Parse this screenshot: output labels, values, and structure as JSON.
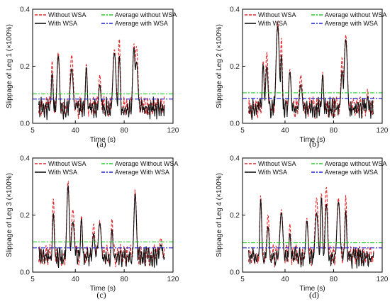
{
  "chart_data": [
    {
      "type": "line",
      "caption": "(a)",
      "ylabel": "Slippage of Leg 1 (×100%)",
      "xlabel": "Time (s)",
      "xlim": [
        5,
        120
      ],
      "ylim": [
        0,
        0.4
      ],
      "xticks": [
        "5",
        "40",
        "80",
        "120"
      ],
      "yticks": [
        "0.0",
        "0.2",
        "0.4"
      ],
      "legend": [
        "Without WSA",
        "With WSA",
        "Average without WSA",
        "Average with WSA"
      ],
      "avg_without": 0.103,
      "avg_with": 0.085,
      "peaks": [
        [
          21,
          0.22
        ],
        [
          26,
          0.25
        ],
        [
          37,
          0.24
        ],
        [
          49,
          0.21
        ],
        [
          60,
          0.17
        ],
        [
          72,
          0.26
        ],
        [
          76,
          0.3
        ],
        [
          88,
          0.28
        ],
        [
          90,
          0.27
        ]
      ],
      "end_x": 113
    },
    {
      "type": "line",
      "caption": "(b)",
      "ylabel": "Slippage of Leg 2 (×100%)",
      "xlabel": "Time (s)",
      "xlim": [
        5,
        120
      ],
      "ylim": [
        0,
        0.4
      ],
      "xticks": [
        "5",
        "40",
        "80",
        "120"
      ],
      "yticks": [
        "0.0",
        "0.2",
        "0.4"
      ],
      "legend": [
        "Without WSA",
        "With WSA",
        "Average without WSA",
        "Average with WSA"
      ],
      "avg_without": 0.107,
      "avg_with": 0.087,
      "peaks": [
        [
          22,
          0.22
        ],
        [
          25,
          0.25
        ],
        [
          34,
          0.36
        ],
        [
          37,
          0.3
        ],
        [
          44,
          0.19
        ],
        [
          53,
          0.17
        ],
        [
          71,
          0.18
        ],
        [
          87,
          0.23
        ],
        [
          90,
          0.31
        ],
        [
          108,
          0.12
        ]
      ],
      "end_x": 113
    },
    {
      "type": "line",
      "caption": "(c)",
      "ylabel": "Slippage of Leg 3 (×100%)",
      "xlabel": "Time (s)",
      "xlim": [
        5,
        120
      ],
      "ylim": [
        0,
        0.4
      ],
      "xticks": [
        "5",
        "40",
        "80",
        "120"
      ],
      "yticks": [
        "0.0",
        "0.2",
        "0.4"
      ],
      "legend": [
        "Without WSA",
        "With WSA",
        "Average Without WSA",
        "Average With WSA"
      ],
      "avg_without": 0.106,
      "avg_with": 0.085,
      "peaks": [
        [
          22,
          0.26
        ],
        [
          34,
          0.32
        ],
        [
          38,
          0.22
        ],
        [
          45,
          0.2
        ],
        [
          55,
          0.17
        ],
        [
          60,
          0.18
        ],
        [
          70,
          0.19
        ],
        [
          89,
          0.29
        ],
        [
          110,
          0.12
        ]
      ],
      "end_x": 113
    },
    {
      "type": "line",
      "caption": "(d)",
      "ylabel": "Slippage of Leg 4 (×100%)",
      "xlabel": "Time (s)",
      "xlim": [
        5,
        120
      ],
      "ylim": [
        0,
        0.4
      ],
      "xticks": [
        "5",
        "40",
        "80",
        "120"
      ],
      "yticks": [
        "0.0",
        "0.2",
        "0.4"
      ],
      "legend": [
        "Without WSA",
        "With WSA",
        "Average without WSA",
        "Average with WSA"
      ],
      "avg_without": 0.103,
      "avg_with": 0.085,
      "peaks": [
        [
          20,
          0.27
        ],
        [
          26,
          0.2
        ],
        [
          37,
          0.22
        ],
        [
          44,
          0.17
        ],
        [
          58,
          0.19
        ],
        [
          66,
          0.26
        ],
        [
          70,
          0.28
        ],
        [
          74,
          0.3
        ],
        [
          84,
          0.26
        ],
        [
          90,
          0.27
        ]
      ],
      "end_x": 113
    }
  ]
}
